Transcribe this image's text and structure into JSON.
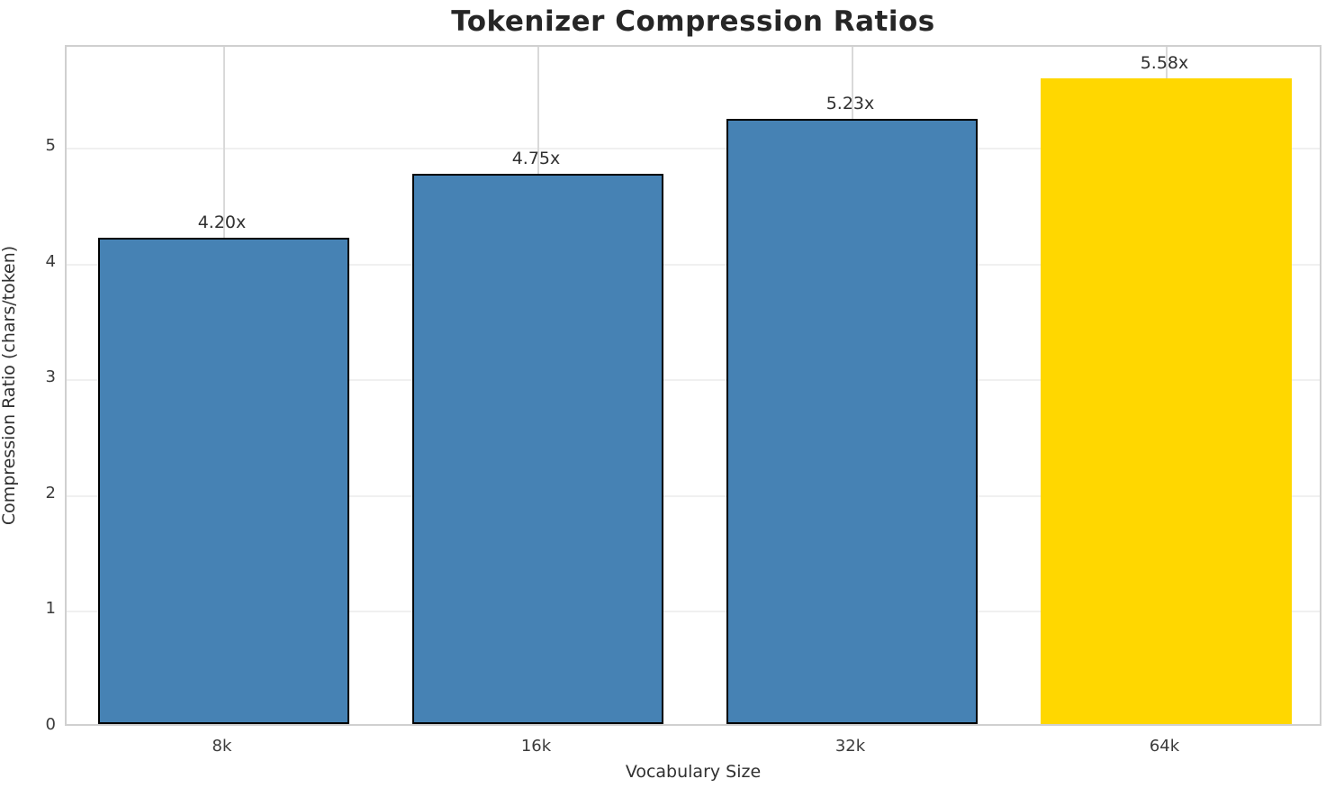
{
  "chart_data": {
    "type": "bar",
    "title": "Tokenizer Compression Ratios",
    "xlabel": "Vocabulary Size",
    "ylabel": "Compression Ratio (chars/token)",
    "categories": [
      "8k",
      "16k",
      "32k",
      "64k"
    ],
    "values": [
      4.2,
      4.75,
      5.23,
      5.58
    ],
    "value_labels": [
      "4.20x",
      "4.75x",
      "5.23x",
      "5.58x"
    ],
    "bar_colors": [
      "#4682b4",
      "#4682b4",
      "#4682b4",
      "#ffd700"
    ],
    "bar_edge_colors": [
      "#000000",
      "#000000",
      "#000000",
      "#ffd700"
    ],
    "highlight_index": 3,
    "ylim": [
      0,
      5.88
    ],
    "yticks": [
      0,
      1,
      2,
      3,
      4,
      5
    ],
    "bar_width_fraction": 0.8,
    "grid": true,
    "legend_position": "none",
    "colors": {
      "grid_horizontal": "#f0f0f0",
      "grid_vertical": "#d9d9d9",
      "spine": "#d0d0d0",
      "title_text": "#262626",
      "tick_text": "#3b3b3b"
    }
  }
}
